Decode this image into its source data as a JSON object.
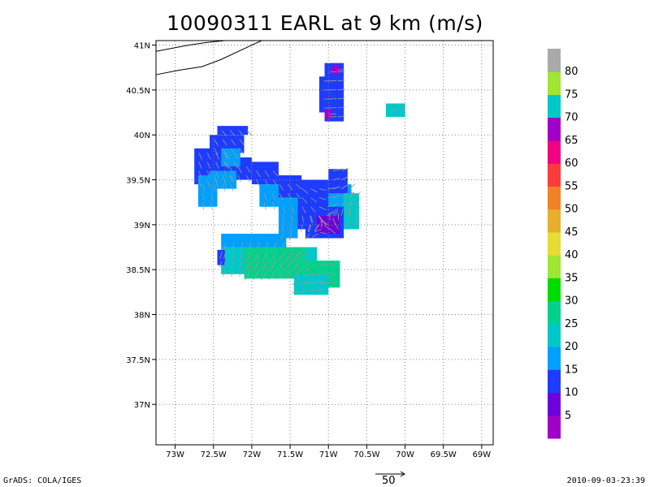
{
  "chart_data": {
    "type": "map",
    "title": "10090311 EARL at 9 km (m/s)",
    "xlim": [
      -73.25,
      -68.85
    ],
    "ylim": [
      36.55,
      41.05
    ],
    "x_ticks": [
      {
        "value": -73.0,
        "label": "73W"
      },
      {
        "value": -72.5,
        "label": "72.5W"
      },
      {
        "value": -72.0,
        "label": "72W"
      },
      {
        "value": -71.5,
        "label": "71.5W"
      },
      {
        "value": -71.0,
        "label": "71W"
      },
      {
        "value": -70.5,
        "label": "70.5W"
      },
      {
        "value": -70.0,
        "label": "70W"
      },
      {
        "value": -69.5,
        "label": "69.5W"
      },
      {
        "value": -69.0,
        "label": "69W"
      }
    ],
    "y_ticks": [
      {
        "value": 41.0,
        "label": "41N"
      },
      {
        "value": 40.5,
        "label": "40.5N"
      },
      {
        "value": 40.0,
        "label": "40N"
      },
      {
        "value": 39.5,
        "label": "39.5N"
      },
      {
        "value": 39.0,
        "label": "39N"
      },
      {
        "value": 38.5,
        "label": "38.5N"
      },
      {
        "value": 38.0,
        "label": "38N"
      },
      {
        "value": 37.5,
        "label": "37.5N"
      },
      {
        "value": 37.0,
        "label": "37N"
      }
    ],
    "grid": true,
    "colorbar": {
      "labels": [
        "5",
        "10",
        "15",
        "20",
        "25",
        "30",
        "35",
        "40",
        "45",
        "50",
        "55",
        "60",
        "65",
        "70",
        "75",
        "80"
      ],
      "colors": [
        "#a000c8",
        "#6e00dc",
        "#1e3cff",
        "#00a0ff",
        "#00c8c8",
        "#00d28c",
        "#00dc00",
        "#a0e632",
        "#e6dc32",
        "#e6af2d",
        "#f08228",
        "#fa3c3c",
        "#f00082",
        "#a000c8",
        "#00c8c8",
        "#a0e632",
        "#aaaaaa"
      ]
    },
    "coastline": [
      [
        [
          -73.25,
          40.93
        ],
        [
          -72.82,
          41.0
        ],
        [
          -72.58,
          41.03
        ],
        [
          -72.35,
          41.05
        ]
      ],
      [
        [
          -73.25,
          40.67
        ],
        [
          -72.95,
          40.72
        ],
        [
          -72.65,
          40.76
        ],
        [
          -72.4,
          40.84
        ],
        [
          -72.0,
          41.0
        ],
        [
          -71.87,
          41.05
        ]
      ]
    ],
    "wind_patches": [
      {
        "cells": [
          [
            -72.55,
            39.8,
            -72.1,
            40.0
          ]
        ],
        "level": 15
      },
      {
        "cells": [
          [
            -72.45,
            40.0,
            -72.05,
            40.1
          ]
        ],
        "level": 15
      },
      {
        "cells": [
          [
            -72.75,
            39.45,
            -72.35,
            39.85
          ]
        ],
        "level": 15
      },
      {
        "cells": [
          [
            -72.35,
            39.5,
            -72.0,
            39.75
          ]
        ],
        "level": 15
      },
      {
        "cells": [
          [
            -72.0,
            39.45,
            -71.65,
            39.7
          ]
        ],
        "level": 15
      },
      {
        "cells": [
          [
            -71.7,
            39.3,
            -71.35,
            39.55
          ]
        ],
        "level": 15
      },
      {
        "cells": [
          [
            -71.4,
            38.95,
            -70.95,
            39.5
          ]
        ],
        "level": 15
      },
      {
        "cells": [
          [
            -71.0,
            39.05,
            -70.7,
            39.45
          ]
        ],
        "level": 20
      },
      {
        "cells": [
          [
            -70.8,
            38.95,
            -70.6,
            39.35
          ]
        ],
        "level": 25
      },
      {
        "cells": [
          [
            -71.3,
            38.85,
            -70.8,
            39.2
          ]
        ],
        "level": 15
      },
      {
        "cells": [
          [
            -71.0,
            39.35,
            -70.75,
            39.62
          ]
        ],
        "level": 15
      },
      {
        "cells": [
          [
            -71.15,
            38.9,
            -70.85,
            39.1
          ]
        ],
        "level": 10
      },
      {
        "cells": [
          [
            -72.7,
            39.2,
            -72.45,
            39.55
          ]
        ],
        "level": 20
      },
      {
        "cells": [
          [
            -72.55,
            39.4,
            -72.2,
            39.6
          ]
        ],
        "level": 20
      },
      {
        "cells": [
          [
            -72.4,
            39.65,
            -72.15,
            39.85
          ]
        ],
        "level": 20
      },
      {
        "cells": [
          [
            -71.9,
            39.2,
            -71.65,
            39.45
          ]
        ],
        "level": 20
      },
      {
        "cells": [
          [
            -71.65,
            38.85,
            -71.4,
            39.3
          ]
        ],
        "level": 20
      },
      {
        "cells": [
          [
            -72.4,
            38.75,
            -71.55,
            38.9
          ]
        ],
        "level": 20
      },
      {
        "cells": [
          [
            -72.4,
            38.45,
            -71.15,
            38.75
          ]
        ],
        "level": 25
      },
      {
        "cells": [
          [
            -72.1,
            38.4,
            -71.3,
            38.75
          ]
        ],
        "level": 30
      },
      {
        "cells": [
          [
            -71.3,
            38.3,
            -70.85,
            38.6
          ]
        ],
        "level": 30
      },
      {
        "cells": [
          [
            -71.45,
            38.22,
            -71.0,
            38.45
          ]
        ],
        "level": 25
      },
      {
        "cells": [
          [
            -72.45,
            38.55,
            -72.35,
            38.72
          ]
        ],
        "level": 15
      },
      {
        "cells": [
          [
            -71.05,
            40.15,
            -70.8,
            40.8
          ]
        ],
        "level": 15
      },
      {
        "cells": [
          [
            -71.12,
            40.25,
            -71.05,
            40.65
          ]
        ],
        "level": 15
      },
      {
        "cells": [
          [
            -70.95,
            40.67,
            -70.85,
            40.78
          ]
        ],
        "level": 5
      },
      {
        "cells": [
          [
            -71.05,
            40.18,
            -70.95,
            40.28
          ]
        ],
        "level": 5
      },
      {
        "cells": [
          [
            -70.25,
            40.2,
            -70.0,
            40.35
          ]
        ],
        "level": 25
      }
    ]
  },
  "footer": {
    "left": "GrADS: COLA/IGES",
    "right": "2010-09-03-23:39",
    "reference_vector_label": "50"
  }
}
